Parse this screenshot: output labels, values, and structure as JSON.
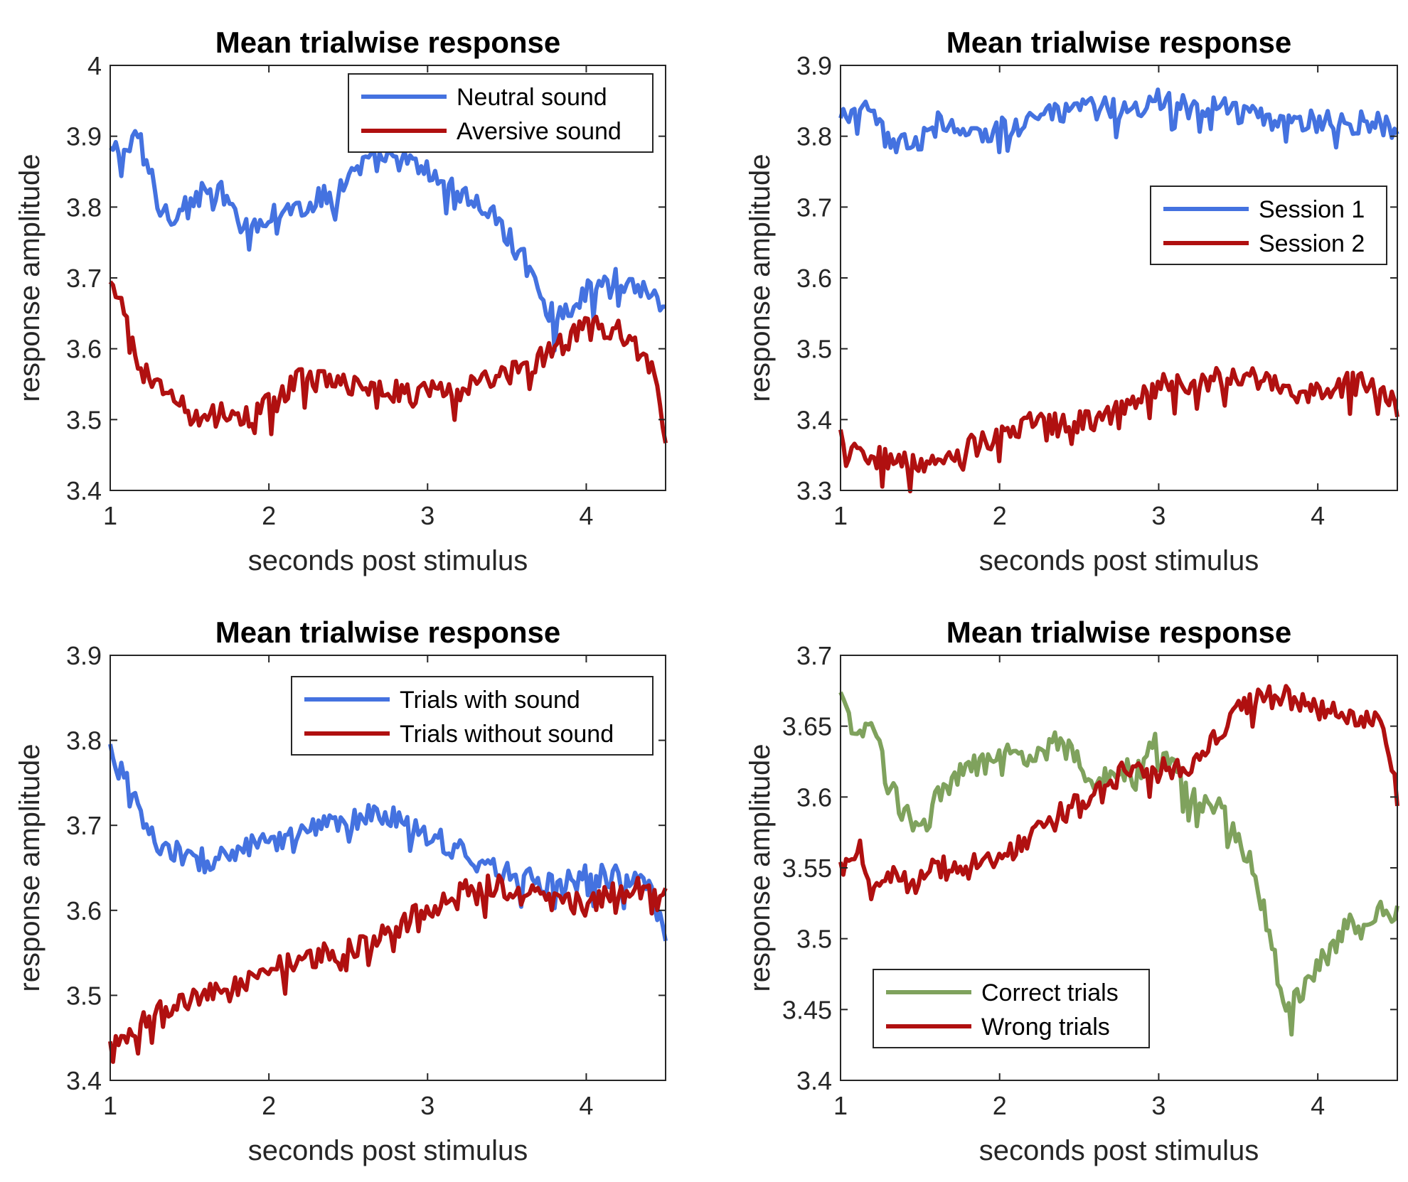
{
  "chart_data": [
    {
      "type": "line",
      "title": "Mean trialwise response",
      "xlabel": "seconds post stimulus",
      "ylabel": "response amplitude",
      "xlim": [
        1,
        4.5
      ],
      "ylim": [
        3.4,
        4.0
      ],
      "xticks": [
        "1",
        "2",
        "3",
        "4"
      ],
      "yticks": [
        "3.4",
        "3.5",
        "3.6",
        "3.7",
        "3.8",
        "3.9",
        "4"
      ],
      "legend_position": "top-right",
      "series": [
        {
          "name": "Neutral sound",
          "color": "#4472e0",
          "x": [
            1.0,
            1.1,
            1.2,
            1.3,
            1.4,
            1.5,
            1.6,
            1.7,
            1.8,
            1.9,
            2.0,
            2.2,
            2.4,
            2.6,
            2.8,
            3.0,
            3.2,
            3.4,
            3.6,
            3.8,
            4.0,
            4.2,
            4.4,
            4.5
          ],
          "y": [
            3.88,
            3.88,
            3.9,
            3.8,
            3.79,
            3.81,
            3.82,
            3.82,
            3.78,
            3.78,
            3.79,
            3.8,
            3.82,
            3.86,
            3.87,
            3.85,
            3.82,
            3.79,
            3.73,
            3.64,
            3.68,
            3.7,
            3.68,
            3.66
          ]
        },
        {
          "name": "Aversive sound",
          "color": "#b01010",
          "x": [
            1.0,
            1.1,
            1.2,
            1.3,
            1.4,
            1.5,
            1.6,
            1.7,
            1.8,
            1.9,
            2.0,
            2.2,
            2.4,
            2.6,
            2.8,
            3.0,
            3.2,
            3.4,
            3.6,
            3.8,
            4.0,
            4.2,
            4.4,
            4.5
          ],
          "y": [
            3.69,
            3.64,
            3.57,
            3.55,
            3.53,
            3.51,
            3.5,
            3.52,
            3.5,
            3.51,
            3.52,
            3.56,
            3.55,
            3.55,
            3.54,
            3.54,
            3.54,
            3.56,
            3.57,
            3.6,
            3.63,
            3.63,
            3.58,
            3.48
          ]
        }
      ]
    },
    {
      "type": "line",
      "title": "Mean trialwise response",
      "xlabel": "seconds post stimulus",
      "ylabel": "response amplitude",
      "xlim": [
        1,
        4.5
      ],
      "ylim": [
        3.3,
        3.9
      ],
      "xticks": [
        "1",
        "2",
        "3",
        "4"
      ],
      "yticks": [
        "3.3",
        "3.4",
        "3.5",
        "3.6",
        "3.7",
        "3.8",
        "3.9"
      ],
      "legend_position": "right",
      "series": [
        {
          "name": "Session 1",
          "color": "#4472e0",
          "x": [
            1.0,
            1.1,
            1.2,
            1.3,
            1.4,
            1.5,
            1.6,
            1.8,
            2.0,
            2.2,
            2.4,
            2.6,
            2.8,
            3.0,
            3.2,
            3.4,
            3.6,
            3.8,
            4.0,
            4.2,
            4.4,
            4.5
          ],
          "y": [
            3.82,
            3.84,
            3.83,
            3.79,
            3.8,
            3.79,
            3.82,
            3.8,
            3.81,
            3.83,
            3.83,
            3.84,
            3.84,
            3.85,
            3.84,
            3.84,
            3.83,
            3.83,
            3.82,
            3.82,
            3.82,
            3.79
          ]
        },
        {
          "name": "Session 2",
          "color": "#b01010",
          "x": [
            1.0,
            1.1,
            1.2,
            1.3,
            1.4,
            1.5,
            1.6,
            1.8,
            2.0,
            2.2,
            2.4,
            2.6,
            2.8,
            3.0,
            3.2,
            3.4,
            3.6,
            3.8,
            4.0,
            4.2,
            4.4,
            4.5
          ],
          "y": [
            3.38,
            3.36,
            3.35,
            3.34,
            3.34,
            3.34,
            3.33,
            3.36,
            3.38,
            3.4,
            3.39,
            3.4,
            3.42,
            3.45,
            3.45,
            3.46,
            3.46,
            3.44,
            3.44,
            3.45,
            3.45,
            3.41
          ]
        }
      ]
    },
    {
      "type": "line",
      "title": "Mean trialwise response",
      "xlabel": "seconds post stimulus",
      "ylabel": "response amplitude",
      "xlim": [
        1,
        4.5
      ],
      "ylim": [
        3.4,
        3.9
      ],
      "xticks": [
        "1",
        "2",
        "3",
        "4"
      ],
      "yticks": [
        "3.4",
        "3.5",
        "3.6",
        "3.7",
        "3.8",
        "3.9"
      ],
      "legend_position": "top-right",
      "series": [
        {
          "name": "Trials with sound",
          "color": "#4472e0",
          "x": [
            1.0,
            1.1,
            1.2,
            1.3,
            1.4,
            1.5,
            1.6,
            1.8,
            2.0,
            2.2,
            2.4,
            2.6,
            2.8,
            3.0,
            3.2,
            3.4,
            3.6,
            3.8,
            4.0,
            4.2,
            4.4,
            4.5
          ],
          "y": [
            3.79,
            3.75,
            3.71,
            3.67,
            3.67,
            3.66,
            3.66,
            3.67,
            3.68,
            3.69,
            3.7,
            3.71,
            3.71,
            3.69,
            3.67,
            3.65,
            3.64,
            3.63,
            3.64,
            3.64,
            3.63,
            3.57
          ]
        },
        {
          "name": "Trials without sound",
          "color": "#b01010",
          "x": [
            1.0,
            1.1,
            1.2,
            1.3,
            1.4,
            1.5,
            1.6,
            1.8,
            2.0,
            2.2,
            2.4,
            2.6,
            2.8,
            3.0,
            3.2,
            3.4,
            3.6,
            3.8,
            4.0,
            4.2,
            4.4,
            4.5
          ],
          "y": [
            3.44,
            3.45,
            3.47,
            3.48,
            3.49,
            3.5,
            3.5,
            3.51,
            3.53,
            3.54,
            3.55,
            3.56,
            3.58,
            3.6,
            3.62,
            3.63,
            3.62,
            3.61,
            3.61,
            3.62,
            3.63,
            3.62
          ]
        }
      ]
    },
    {
      "type": "line",
      "title": "Mean trialwise response",
      "xlabel": "seconds post stimulus",
      "ylabel": "response amplitude",
      "xlim": [
        1,
        4.5
      ],
      "ylim": [
        3.4,
        3.7
      ],
      "xticks": [
        "1",
        "2",
        "3",
        "4"
      ],
      "yticks": [
        "3.4",
        "3.45",
        "3.5",
        "3.55",
        "3.6",
        "3.65",
        "3.7"
      ],
      "legend_position": "bottom-left",
      "series": [
        {
          "name": "Correct trials",
          "color": "#7fa25d",
          "x": [
            1.0,
            1.1,
            1.2,
            1.3,
            1.4,
            1.5,
            1.6,
            1.8,
            2.0,
            2.2,
            2.4,
            2.6,
            2.8,
            3.0,
            3.2,
            3.4,
            3.6,
            3.7,
            3.8,
            3.9,
            4.0,
            4.2,
            4.4,
            4.5
          ],
          "y": [
            3.67,
            3.64,
            3.65,
            3.61,
            3.59,
            3.58,
            3.6,
            3.62,
            3.63,
            3.63,
            3.64,
            3.61,
            3.62,
            3.64,
            3.6,
            3.59,
            3.55,
            3.5,
            3.45,
            3.46,
            3.48,
            3.51,
            3.52,
            3.52
          ]
        },
        {
          "name": "Wrong trials",
          "color": "#b01010",
          "x": [
            1.0,
            1.1,
            1.2,
            1.3,
            1.4,
            1.5,
            1.6,
            1.8,
            2.0,
            2.2,
            2.4,
            2.6,
            2.8,
            3.0,
            3.2,
            3.4,
            3.6,
            3.8,
            4.0,
            4.2,
            4.4,
            4.5
          ],
          "y": [
            3.55,
            3.57,
            3.54,
            3.55,
            3.54,
            3.54,
            3.55,
            3.55,
            3.56,
            3.57,
            3.59,
            3.6,
            3.62,
            3.62,
            3.62,
            3.65,
            3.67,
            3.67,
            3.66,
            3.66,
            3.65,
            3.6
          ]
        }
      ]
    }
  ]
}
